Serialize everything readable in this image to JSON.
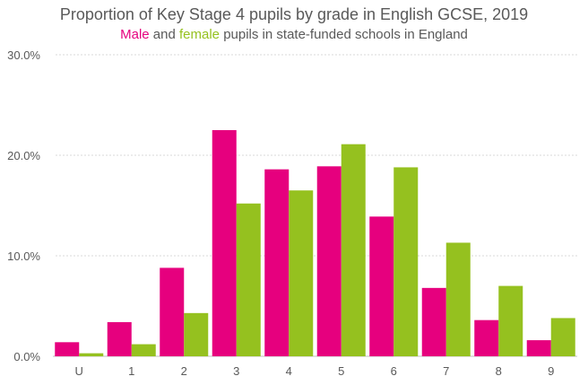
{
  "chart_data": {
    "type": "bar",
    "title": "Proportion of Key Stage 4 pupils by grade in English GCSE, 2019",
    "subtitle": {
      "male_word": "Male",
      "connector": " and ",
      "female_word": "female",
      "rest": " pupils in state-funded schools in England"
    },
    "categories": [
      "U",
      "1",
      "2",
      "3",
      "4",
      "5",
      "6",
      "7",
      "8",
      "9"
    ],
    "series": [
      {
        "name": "Male",
        "color": "#E6007E",
        "values": [
          1.4,
          3.4,
          8.8,
          22.5,
          18.6,
          18.9,
          13.9,
          6.8,
          3.6,
          1.6
        ]
      },
      {
        "name": "Female",
        "color": "#95C11F",
        "values": [
          0.3,
          1.2,
          4.3,
          15.2,
          16.5,
          21.1,
          18.8,
          11.3,
          7.0,
          3.8
        ]
      }
    ],
    "ylim": [
      0,
      30
    ],
    "yticks": [
      0,
      10,
      20,
      30
    ],
    "ytick_labels": [
      "0.0%",
      "10.0%",
      "20.0%",
      "30.0%"
    ],
    "xlabel": "",
    "ylabel": "",
    "grid": true,
    "legend": "none"
  }
}
